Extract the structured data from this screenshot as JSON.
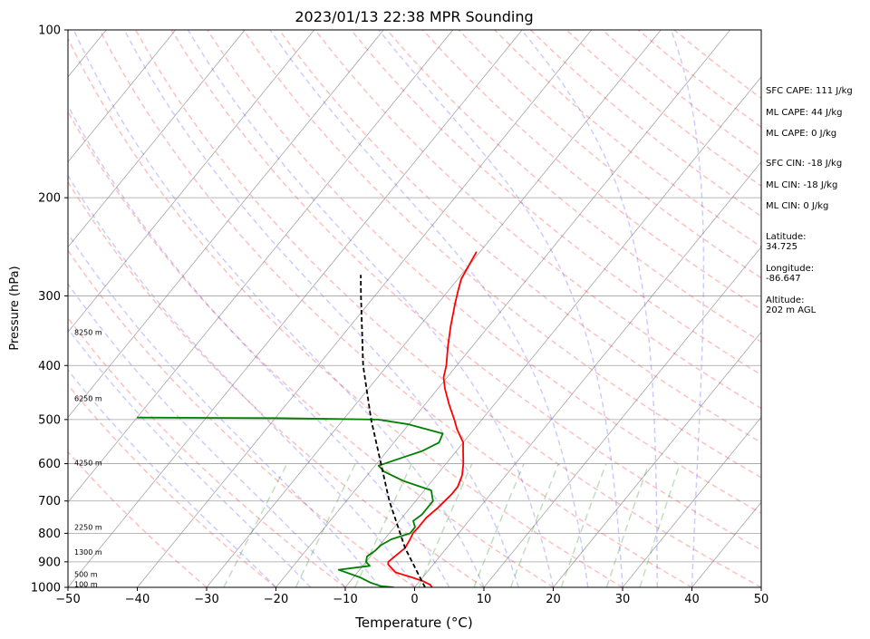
{
  "chart_data": {
    "type": "line",
    "subtype": "skew-t log-p",
    "title": "2023/01/13 22:38 MPR Sounding",
    "xlabel": "Temperature (°C)",
    "ylabel": "Pressure (hPa)",
    "xlim": [
      -50,
      50
    ],
    "ylim": [
      1000,
      100
    ],
    "y_scale": "log",
    "x_ticks": [
      "−50",
      "−40",
      "−30",
      "−20",
      "−10",
      "0",
      "10",
      "20",
      "30",
      "40",
      "50"
    ],
    "y_ticks": [
      "100",
      "200",
      "300",
      "400",
      "500",
      "600",
      "700",
      "800",
      "900",
      "1000"
    ],
    "grid": true,
    "series": [
      {
        "role": "temperature",
        "color": "#ff0000",
        "points": [
          [
            1000,
            2.5
          ],
          [
            990,
            2.0
          ],
          [
            975,
            0.5
          ],
          [
            960,
            -1.5
          ],
          [
            950,
            -3.0
          ],
          [
            940,
            -4.5
          ],
          [
            925,
            -5.5
          ],
          [
            910,
            -6.5
          ],
          [
            900,
            -6.8
          ],
          [
            880,
            -6.5
          ],
          [
            850,
            -6.0
          ],
          [
            820,
            -6.3
          ],
          [
            800,
            -6.6
          ],
          [
            780,
            -6.5
          ],
          [
            750,
            -6.5
          ],
          [
            720,
            -6.0
          ],
          [
            700,
            -5.8
          ],
          [
            680,
            -5.6
          ],
          [
            660,
            -5.6
          ],
          [
            630,
            -6.3
          ],
          [
            600,
            -7.5
          ],
          [
            570,
            -9.0
          ],
          [
            550,
            -10.0
          ],
          [
            520,
            -12.5
          ],
          [
            500,
            -14.0
          ],
          [
            470,
            -16.5
          ],
          [
            440,
            -19.0
          ],
          [
            420,
            -20.5
          ],
          [
            400,
            -21.5
          ],
          [
            370,
            -23.5
          ],
          [
            340,
            -25.5
          ],
          [
            310,
            -27.5
          ],
          [
            295,
            -28.5
          ],
          [
            280,
            -29.5
          ],
          [
            265,
            -30.0
          ],
          [
            250,
            -30.5
          ]
        ]
      },
      {
        "role": "dewpoint",
        "color": "#008000",
        "points": [
          [
            1000,
            -3.0
          ],
          [
            995,
            -5.0
          ],
          [
            980,
            -7.0
          ],
          [
            960,
            -9.0
          ],
          [
            945,
            -11.0
          ],
          [
            930,
            -13.0
          ],
          [
            915,
            -9.0
          ],
          [
            900,
            -10.0
          ],
          [
            880,
            -10.5
          ],
          [
            860,
            -10.0
          ],
          [
            840,
            -9.8
          ],
          [
            820,
            -9.0
          ],
          [
            800,
            -7.0
          ],
          [
            780,
            -7.0
          ],
          [
            760,
            -8.0
          ],
          [
            740,
            -7.5
          ],
          [
            700,
            -7.5
          ],
          [
            670,
            -9.0
          ],
          [
            645,
            -14.0
          ],
          [
            620,
            -18.0
          ],
          [
            605,
            -19.5
          ],
          [
            585,
            -17.0
          ],
          [
            570,
            -15.0
          ],
          [
            550,
            -13.5
          ],
          [
            530,
            -14.0
          ],
          [
            510,
            -20.0
          ],
          [
            500,
            -25.0
          ],
          [
            497,
            -40.0
          ],
          [
            496,
            -60.0
          ]
        ]
      },
      {
        "role": "parcel",
        "color": "#000000",
        "style": "dashed",
        "points": [
          [
            1000,
            1.5
          ],
          [
            850,
            -6.0
          ],
          [
            700,
            -13.8
          ],
          [
            500,
            -26.0
          ],
          [
            400,
            -33.5
          ],
          [
            300,
            -42.0
          ],
          [
            275,
            -44.5
          ]
        ]
      }
    ],
    "background_lines": {
      "dry_adiabats_color": "#ff0000",
      "moist_adiabats_color": "#0000ff",
      "mixing_ratio_color": "#008000",
      "isotherms_color": "#808080"
    },
    "height_labels": [
      {
        "label": "100 m",
        "p": 990
      },
      {
        "label": "500 m",
        "p": 950
      },
      {
        "label": "1300 m",
        "p": 868
      },
      {
        "label": "2250 m",
        "p": 782
      },
      {
        "label": "4250 m",
        "p": 600
      },
      {
        "label": "6250 m",
        "p": 460
      },
      {
        "label": "8250 m",
        "p": 350
      }
    ]
  },
  "info_panel": {
    "sfc_cape": "SFC CAPE: 111 J/kg",
    "ml_cape_1": "ML CAPE: 44 J/kg",
    "ml_cape_2": "ML CAPE: 0 J/kg",
    "sfc_cin": "SFC CIN: -18 J/kg",
    "ml_cin_1": "ML CIN: -18 J/kg",
    "ml_cin_2": "ML CIN: 0 J/kg",
    "latitude": "Latitude:\n34.725",
    "longitude": "Longitude:\n-86.647",
    "altitude": "Altitude:\n202 m AGL"
  }
}
